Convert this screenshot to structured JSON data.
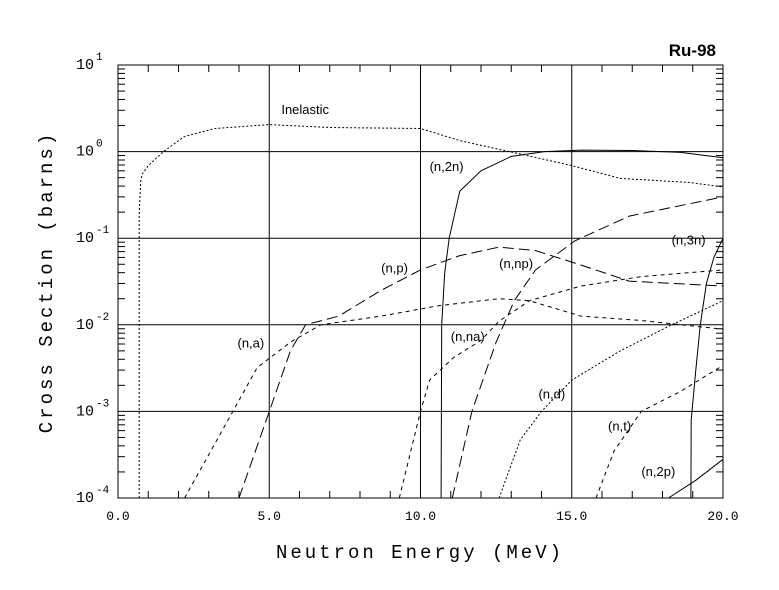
{
  "chart_data": {
    "type": "line",
    "title": "Ru-98",
    "xlabel": "Neutron Energy (MeV)",
    "ylabel": "Cross Section (barns)",
    "xlim": [
      0,
      20
    ],
    "ylim": [
      0.0001,
      10
    ],
    "yscale": "log",
    "grid": true,
    "x_ticks": [
      "0.0",
      "5.0",
      "10.0",
      "15.0",
      "20.0"
    ],
    "x_tick_values": [
      0,
      5,
      10,
      15,
      20
    ],
    "y_ticks": [
      {
        "base": "10",
        "exp": "1",
        "value": 10
      },
      {
        "base": "10",
        "exp": "0",
        "value": 1
      },
      {
        "base": "10",
        "exp": "-1",
        "value": 0.1
      },
      {
        "base": "10",
        "exp": "-2",
        "value": 0.01
      },
      {
        "base": "10",
        "exp": "-3",
        "value": 0.001
      },
      {
        "base": "10",
        "exp": "-4",
        "value": 0.0001
      }
    ],
    "series": [
      {
        "name": "Inelastic",
        "style": "dotted",
        "label_at": [
          5.4,
          2.7
        ],
        "x": [
          0.7,
          0.7,
          0.75,
          0.8,
          1.0,
          1.5,
          2.2,
          3.2,
          5,
          7,
          10,
          11.3,
          13.1,
          15,
          16.6,
          18.9,
          20
        ],
        "y": [
          0.0001,
          0.19,
          0.45,
          0.55,
          0.69,
          1.0,
          1.5,
          1.85,
          2.05,
          1.9,
          1.85,
          1.34,
          0.97,
          0.69,
          0.49,
          0.44,
          0.39
        ]
      },
      {
        "name": "(n,2n)",
        "style": "solid",
        "label_at": [
          10.3,
          0.6
        ],
        "x": [
          10.68,
          10.7,
          10.8,
          10.95,
          11.3,
          12,
          13,
          14.1,
          15.3,
          17,
          18.6,
          20
        ],
        "y": [
          0.0001,
          0.01,
          0.04,
          0.1,
          0.35,
          0.6,
          0.88,
          1.0,
          1.04,
          1.03,
          0.98,
          0.85
        ]
      },
      {
        "name": "(n,3n)",
        "style": "solid",
        "label_at": [
          18.3,
          0.085
        ],
        "x": [
          18.94,
          18.95,
          19.1,
          19.25,
          19.45,
          19.7,
          20
        ],
        "y": [
          0.0001,
          0.0008,
          0.003,
          0.01,
          0.03,
          0.06,
          0.1
        ]
      },
      {
        "name": "(n,p)",
        "style": "longdash",
        "label_at": [
          8.7,
          0.04
        ],
        "x": [
          4.0,
          5,
          5.7,
          6.2,
          7.3,
          8.7,
          10,
          11.3,
          12.6,
          13.8,
          15.3,
          16.9,
          20
        ],
        "y": [
          0.0001,
          0.001,
          0.005,
          0.01,
          0.0126,
          0.025,
          0.043,
          0.063,
          0.079,
          0.072,
          0.049,
          0.032,
          0.028
        ]
      },
      {
        "name": "(n,a)",
        "style": "dash",
        "label_at": [
          3.95,
          0.0055
        ],
        "x": [
          2.2,
          3.8,
          4.6,
          5.7,
          6.7,
          8.7,
          10.6,
          12.6,
          13.6,
          15.3,
          17.3,
          20
        ],
        "y": [
          0.0001,
          0.001,
          0.0032,
          0.0063,
          0.01,
          0.0126,
          0.0166,
          0.02,
          0.019,
          0.0126,
          0.0112,
          0.0089
        ]
      },
      {
        "name": "(n,np)",
        "style": "longdash",
        "label_at": [
          12.6,
          0.045
        ],
        "x": [
          11.05,
          11.7,
          12.5,
          13.1,
          13.8,
          15.1,
          16.9,
          20
        ],
        "y": [
          0.0001,
          0.001,
          0.0063,
          0.019,
          0.043,
          0.093,
          0.18,
          0.3
        ]
      },
      {
        "name": "(n,na)",
        "style": "dash",
        "label_at": [
          11.0,
          0.0065
        ],
        "x": [
          9.3,
          10,
          10.3,
          11.1,
          12,
          12.6,
          13.6,
          15.3,
          17.3,
          20
        ],
        "y": [
          0.0001,
          0.001,
          0.0023,
          0.0042,
          0.0066,
          0.011,
          0.019,
          0.028,
          0.036,
          0.043
        ]
      },
      {
        "name": "(n,d)",
        "style": "dotted",
        "label_at": [
          13.9,
          0.0014
        ],
        "x": [
          12.6,
          13.3,
          14,
          15,
          16.6,
          18.3,
          20
        ],
        "y": [
          0.0001,
          0.00047,
          0.001,
          0.0023,
          0.005,
          0.01,
          0.019
        ]
      },
      {
        "name": "(n,t)",
        "style": "dash",
        "label_at": [
          16.2,
          0.0006
        ],
        "x": [
          15.8,
          16.4,
          17.3,
          18.6,
          20
        ],
        "y": [
          0.0001,
          0.00035,
          0.001,
          0.0017,
          0.0034
        ]
      },
      {
        "name": "(n,2p)",
        "style": "solid",
        "label_at": [
          17.3,
          0.00018
        ],
        "x": [
          18.2,
          19.1,
          20
        ],
        "y": [
          0.0001,
          0.00016,
          0.00028
        ]
      }
    ]
  }
}
